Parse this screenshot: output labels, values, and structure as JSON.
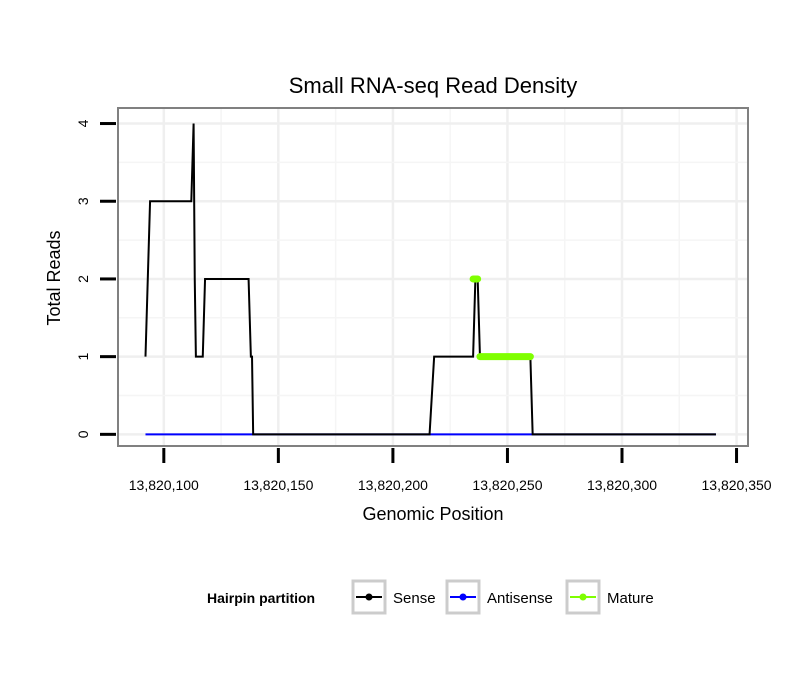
{
  "chart_data": {
    "type": "line",
    "title": "Small RNA-seq Read Density",
    "xlabel": "Genomic Position",
    "ylabel": "Total Reads",
    "xlim": [
      13820080,
      13820355
    ],
    "ylim": [
      -0.15,
      4.2
    ],
    "x_ticks": [
      13820100,
      13820150,
      13820200,
      13820250,
      13820300,
      13820350
    ],
    "x_tick_labels": [
      "13,820,100",
      "13,820,150",
      "13,820,200",
      "13,820,250",
      "13,820,300",
      "13,820,350"
    ],
    "y_ticks": [
      0,
      1,
      2,
      3,
      4
    ],
    "y_tick_labels": [
      "0",
      "1",
      "2",
      "3",
      "4"
    ],
    "grid": true,
    "legend": {
      "title": "Hairpin partition",
      "position": "bottom"
    },
    "series": [
      {
        "name": "Sense",
        "color": "#000000",
        "x": [
          13820092,
          13820094,
          13820112,
          13820113,
          13820113.5,
          13820114,
          13820117,
          13820118,
          13820137,
          13820138,
          13820138.5,
          13820139,
          13820141,
          13820148,
          13820198,
          13820216,
          13820218,
          13820235,
          13820236,
          13820237,
          13820238,
          13820259,
          13820260,
          13820261,
          13820341
        ],
        "y": [
          1,
          3,
          3,
          4,
          2,
          1,
          1,
          2,
          2,
          1,
          1,
          0,
          0,
          0,
          0,
          0,
          1,
          1,
          2,
          2,
          1,
          1,
          1,
          0,
          0
        ]
      },
      {
        "name": "Antisense",
        "color": "#0000ff",
        "x": [
          13820092,
          13820341
        ],
        "y": [
          0,
          0
        ]
      },
      {
        "name": "Mature",
        "color": "#7fff00",
        "segments": [
          {
            "x": [
              13820235,
              13820237
            ],
            "y": [
              2,
              2
            ]
          },
          {
            "x": [
              13820238,
              13820260
            ],
            "y": [
              1,
              1
            ]
          }
        ]
      }
    ]
  }
}
